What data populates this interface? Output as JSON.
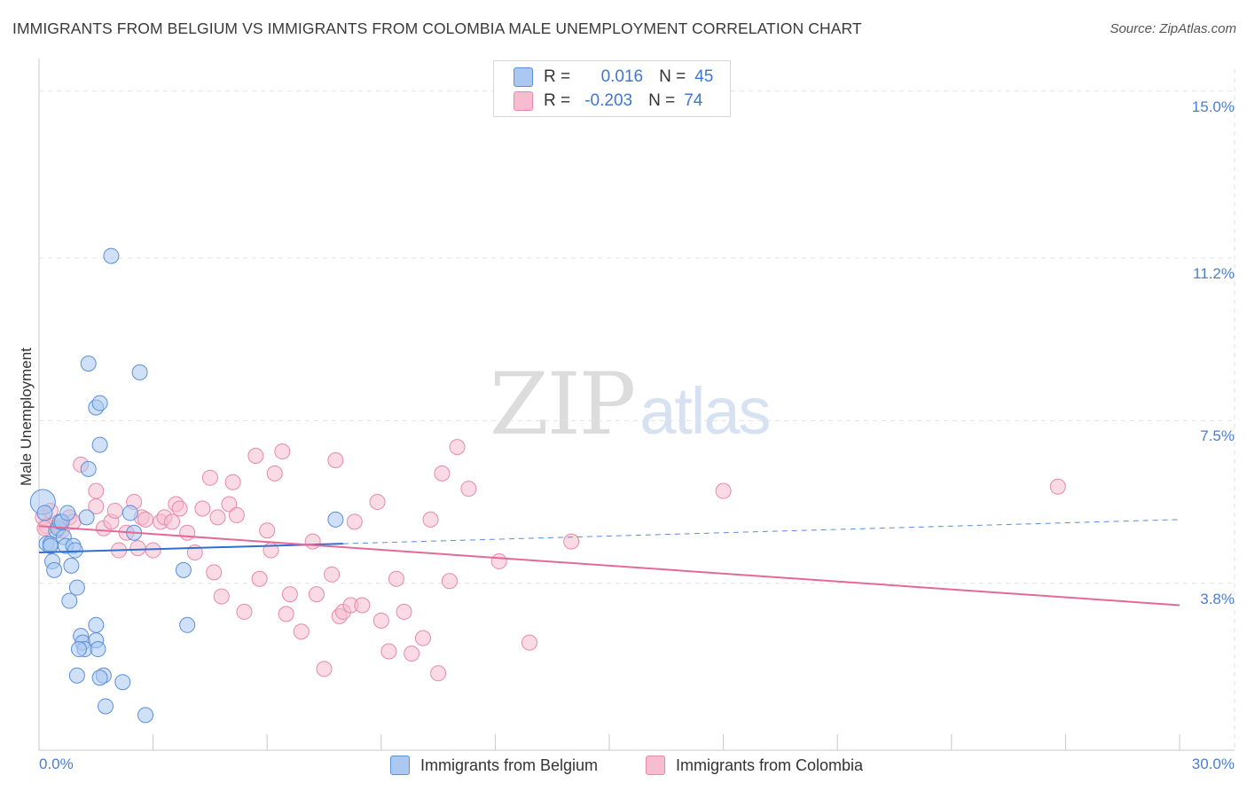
{
  "title": "IMMIGRANTS FROM BELGIUM VS IMMIGRANTS FROM COLOMBIA MALE UNEMPLOYMENT CORRELATION CHART",
  "source": "Source: ZipAtlas.com",
  "watermark": {
    "zip": "ZIP",
    "atlas": "atlas"
  },
  "legend": {
    "rows": [
      {
        "r_label": "R =",
        "r_value": "0.016",
        "n_label": "N =",
        "n_value": "45"
      },
      {
        "r_label": "R =",
        "r_value": "-0.203",
        "n_label": "N =",
        "n_value": "74"
      }
    ]
  },
  "bottom_legend": [
    "Immigrants from Belgium",
    "Immigrants from Colombia"
  ],
  "colors": {
    "belgium_fill": "#aac8f0",
    "belgium_stroke": "#5b8fd6",
    "belgium_line": "#2f6fd0",
    "colombia_fill": "#f6bcd0",
    "colombia_stroke": "#e889aa",
    "colombia_line": "#e36a97",
    "tick_text": "#4a7ecf",
    "grid": "#e2e2e2"
  },
  "chart_data": {
    "type": "scatter",
    "xlabel": "",
    "ylabel": "Male Unemployment",
    "xlim": [
      0,
      30
    ],
    "ylim": [
      0,
      15.5
    ],
    "x_tick_labels": [
      "0.0%",
      "30.0%"
    ],
    "y_ticks": [
      3.8,
      7.5,
      11.2,
      15.0
    ],
    "y_tick_labels": [
      "3.8%",
      "7.5%",
      "11.2%",
      "15.0%"
    ],
    "grid": true,
    "series": [
      {
        "name": "Immigrants from Belgium",
        "r": 0.016,
        "n": 45,
        "trend": {
          "x": [
            0,
            8.0
          ],
          "y": [
            4.5,
            4.7
          ],
          "dashed_to": {
            "x": 30,
            "y": 5.25
          }
        },
        "points": [
          [
            0.1,
            5.65
          ],
          [
            0.15,
            5.4
          ],
          [
            0.2,
            4.7
          ],
          [
            0.3,
            4.7
          ],
          [
            0.35,
            4.3
          ],
          [
            0.4,
            4.1
          ],
          [
            0.45,
            5.0
          ],
          [
            0.5,
            5.05
          ],
          [
            0.55,
            5.2
          ],
          [
            0.6,
            5.2
          ],
          [
            0.65,
            4.85
          ],
          [
            0.7,
            4.65
          ],
          [
            0.75,
            5.4
          ],
          [
            0.8,
            3.4
          ],
          [
            0.85,
            4.2
          ],
          [
            0.9,
            4.65
          ],
          [
            0.95,
            4.55
          ],
          [
            1.0,
            3.7
          ],
          [
            1.1,
            2.6
          ],
          [
            1.15,
            2.45
          ],
          [
            1.2,
            2.3
          ],
          [
            1.25,
            5.3
          ],
          [
            1.5,
            2.5
          ],
          [
            1.55,
            2.3
          ],
          [
            1.7,
            1.7
          ],
          [
            1.75,
            1.0
          ],
          [
            1.3,
            6.4
          ],
          [
            1.3,
            8.8
          ],
          [
            1.5,
            2.85
          ],
          [
            1.6,
            1.65
          ],
          [
            1.5,
            7.8
          ],
          [
            1.6,
            7.9
          ],
          [
            1.6,
            6.95
          ],
          [
            1.9,
            11.25
          ],
          [
            2.2,
            1.55
          ],
          [
            2.4,
            5.4
          ],
          [
            2.5,
            4.95
          ],
          [
            2.65,
            8.6
          ],
          [
            2.8,
            0.8
          ],
          [
            3.8,
            4.1
          ],
          [
            3.9,
            2.85
          ],
          [
            7.8,
            5.25
          ],
          [
            0.3,
            4.65
          ],
          [
            1.0,
            1.7
          ],
          [
            1.05,
            2.3
          ]
        ]
      },
      {
        "name": "Immigrants from Colombia",
        "r": -0.203,
        "n": 74,
        "trend": {
          "x": [
            0,
            30
          ],
          "y": [
            5.1,
            3.3
          ]
        },
        "points": [
          [
            0.1,
            5.3
          ],
          [
            0.2,
            5.1
          ],
          [
            0.3,
            5.45
          ],
          [
            0.5,
            5.1
          ],
          [
            0.6,
            5.0
          ],
          [
            0.8,
            5.3
          ],
          [
            0.9,
            5.2
          ],
          [
            1.1,
            6.5
          ],
          [
            1.5,
            5.9
          ],
          [
            1.5,
            5.55
          ],
          [
            1.7,
            5.05
          ],
          [
            1.9,
            5.2
          ],
          [
            2.0,
            5.45
          ],
          [
            2.1,
            4.55
          ],
          [
            2.3,
            4.95
          ],
          [
            2.5,
            5.65
          ],
          [
            2.6,
            4.6
          ],
          [
            2.7,
            5.3
          ],
          [
            2.8,
            5.25
          ],
          [
            3.0,
            4.55
          ],
          [
            3.2,
            5.2
          ],
          [
            3.3,
            5.3
          ],
          [
            3.5,
            5.2
          ],
          [
            3.6,
            5.6
          ],
          [
            3.7,
            5.5
          ],
          [
            3.9,
            4.95
          ],
          [
            4.1,
            4.5
          ],
          [
            4.3,
            5.5
          ],
          [
            4.5,
            6.2
          ],
          [
            4.6,
            4.05
          ],
          [
            4.7,
            5.3
          ],
          [
            4.8,
            3.5
          ],
          [
            5.0,
            5.6
          ],
          [
            5.1,
            6.1
          ],
          [
            5.2,
            5.35
          ],
          [
            5.4,
            3.15
          ],
          [
            5.7,
            6.7
          ],
          [
            5.8,
            3.9
          ],
          [
            6.0,
            5.0
          ],
          [
            6.1,
            4.55
          ],
          [
            6.2,
            6.3
          ],
          [
            6.4,
            6.8
          ],
          [
            6.5,
            3.1
          ],
          [
            6.6,
            3.55
          ],
          [
            6.9,
            2.7
          ],
          [
            7.2,
            4.75
          ],
          [
            7.3,
            3.55
          ],
          [
            7.5,
            1.85
          ],
          [
            7.7,
            4.0
          ],
          [
            7.8,
            6.6
          ],
          [
            7.9,
            3.05
          ],
          [
            8.0,
            3.15
          ],
          [
            8.2,
            3.3
          ],
          [
            8.3,
            5.2
          ],
          [
            8.5,
            3.3
          ],
          [
            8.9,
            5.65
          ],
          [
            9.0,
            2.95
          ],
          [
            9.2,
            2.25
          ],
          [
            9.4,
            3.9
          ],
          [
            9.6,
            3.15
          ],
          [
            9.8,
            2.2
          ],
          [
            10.1,
            2.55
          ],
          [
            10.3,
            5.25
          ],
          [
            10.5,
            1.75
          ],
          [
            10.6,
            6.3
          ],
          [
            10.8,
            3.85
          ],
          [
            11.0,
            6.9
          ],
          [
            11.3,
            5.95
          ],
          [
            12.1,
            4.3
          ],
          [
            12.9,
            2.45
          ],
          [
            14.0,
            4.75
          ],
          [
            18.0,
            5.9
          ],
          [
            26.8,
            6.0
          ],
          [
            0.15,
            5.05
          ]
        ]
      }
    ]
  }
}
